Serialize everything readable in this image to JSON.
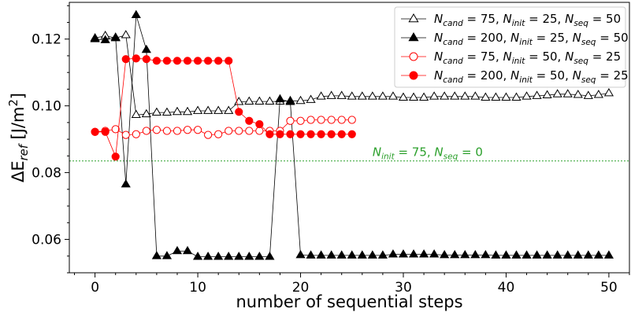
{
  "chart_data": {
    "type": "line",
    "xlabel": "number of sequential steps",
    "ylabel": "ΔE_ref [J/m²]",
    "ylabel_parts": {
      "prefix": "ΔE",
      "sub": "ref",
      "unit_open": " [J/m",
      "unit_sup": "2",
      "unit_close": "]"
    },
    "xlim": [
      -2.5,
      52.0
    ],
    "ylim": [
      0.05,
      0.131
    ],
    "xticks": [
      0,
      10,
      20,
      30,
      40,
      50
    ],
    "xtick_labels": [
      "0",
      "10",
      "20",
      "30",
      "40",
      "50"
    ],
    "yticks": [
      0.06,
      0.08,
      0.1,
      0.12
    ],
    "ytick_labels": [
      "0.06",
      "0.08",
      "0.10",
      "0.12"
    ],
    "grid": false,
    "legend_position": "top-right",
    "reference_line": {
      "y": 0.0835,
      "color": "#2ca02c",
      "label_parts": [
        {
          "t": "N",
          "s": "i"
        },
        {
          "t": "init",
          "s": "sub"
        },
        {
          "t": " = 75, ",
          "s": "n"
        },
        {
          "t": "N",
          "s": "i"
        },
        {
          "t": "seq",
          "s": "sub"
        },
        {
          "t": " = 0",
          "s": "n"
        }
      ],
      "label_x": 27.0
    },
    "series": [
      {
        "label_parts": [
          {
            "t": "N",
            "s": "i"
          },
          {
            "t": "cand",
            "s": "sub"
          },
          {
            "t": " = 75, ",
            "s": "n"
          },
          {
            "t": "N",
            "s": "i"
          },
          {
            "t": "init",
            "s": "sub"
          },
          {
            "t": " = 25, ",
            "s": "n"
          },
          {
            "t": "N",
            "s": "i"
          },
          {
            "t": "seq",
            "s": "sub"
          },
          {
            "t": " = 50",
            "s": "n"
          }
        ],
        "color": "#000000",
        "marker": "triangle",
        "filled": false,
        "x": [
          0,
          1,
          2,
          3,
          4,
          5,
          6,
          7,
          8,
          9,
          10,
          11,
          12,
          13,
          14,
          15,
          16,
          17,
          18,
          19,
          20,
          21,
          22,
          23,
          24,
          25,
          26,
          27,
          28,
          29,
          30,
          31,
          32,
          33,
          34,
          35,
          36,
          37,
          38,
          39,
          40,
          41,
          42,
          43,
          44,
          45,
          46,
          47,
          48,
          49,
          50
        ],
        "values": [
          0.1203,
          0.121,
          0.1203,
          0.1212,
          0.0973,
          0.0975,
          0.098,
          0.098,
          0.0982,
          0.0982,
          0.0985,
          0.0985,
          0.0985,
          0.0985,
          0.1012,
          0.1013,
          0.1013,
          0.1013,
          0.1013,
          0.1015,
          0.1015,
          0.1018,
          0.1028,
          0.103,
          0.103,
          0.1028,
          0.1028,
          0.1028,
          0.1028,
          0.1028,
          0.1025,
          0.1025,
          0.1025,
          0.1028,
          0.1028,
          0.1028,
          0.1028,
          0.1028,
          0.1025,
          0.1025,
          0.1025,
          0.1025,
          0.1028,
          0.103,
          0.1032,
          0.1035,
          0.1035,
          0.1033,
          0.103,
          0.1033,
          0.1038
        ]
      },
      {
        "label_parts": [
          {
            "t": "N",
            "s": "i"
          },
          {
            "t": "cand",
            "s": "sub"
          },
          {
            "t": " = 200, ",
            "s": "n"
          },
          {
            "t": "N",
            "s": "i"
          },
          {
            "t": "init",
            "s": "sub"
          },
          {
            "t": " = 25, ",
            "s": "n"
          },
          {
            "t": "N",
            "s": "i"
          },
          {
            "t": "seq",
            "s": "sub"
          },
          {
            "t": " = 50",
            "s": "n"
          }
        ],
        "color": "#000000",
        "marker": "triangle",
        "filled": true,
        "x": [
          0,
          1,
          2,
          3,
          4,
          5,
          6,
          7,
          8,
          9,
          10,
          11,
          12,
          13,
          14,
          15,
          16,
          17,
          18,
          19,
          20,
          21,
          22,
          23,
          24,
          25,
          26,
          27,
          28,
          29,
          30,
          31,
          32,
          33,
          34,
          35,
          36,
          37,
          38,
          39,
          40,
          41,
          42,
          43,
          44,
          45,
          46,
          47,
          48,
          49,
          50
        ],
        "values": [
          0.12,
          0.1197,
          0.1205,
          0.0765,
          0.1272,
          0.1168,
          0.055,
          0.055,
          0.0565,
          0.0565,
          0.0548,
          0.0548,
          0.0548,
          0.0548,
          0.0548,
          0.0548,
          0.0548,
          0.0548,
          0.102,
          0.1012,
          0.0553,
          0.0552,
          0.0552,
          0.0552,
          0.0552,
          0.0552,
          0.0552,
          0.0552,
          0.0552,
          0.0555,
          0.0555,
          0.0555,
          0.0555,
          0.0555,
          0.0553,
          0.0553,
          0.0553,
          0.0553,
          0.0553,
          0.0552,
          0.0552,
          0.0552,
          0.0552,
          0.0552,
          0.0552,
          0.0552,
          0.0552,
          0.0552,
          0.0552,
          0.0552,
          0.0552
        ]
      },
      {
        "label_parts": [
          {
            "t": "N",
            "s": "i"
          },
          {
            "t": "cand",
            "s": "sub"
          },
          {
            "t": " = 75, ",
            "s": "n"
          },
          {
            "t": "N",
            "s": "i"
          },
          {
            "t": "init",
            "s": "sub"
          },
          {
            "t": " = 50, ",
            "s": "n"
          },
          {
            "t": "N",
            "s": "i"
          },
          {
            "t": "seq",
            "s": "sub"
          },
          {
            "t": " = 25",
            "s": "n"
          }
        ],
        "color": "#ff0000",
        "marker": "circle",
        "filled": false,
        "x": [
          0,
          1,
          2,
          3,
          4,
          5,
          6,
          7,
          8,
          9,
          10,
          11,
          12,
          13,
          14,
          15,
          16,
          17,
          18,
          19,
          20,
          21,
          22,
          23,
          24,
          25
        ],
        "values": [
          0.0922,
          0.0925,
          0.093,
          0.0913,
          0.0915,
          0.0925,
          0.0928,
          0.0925,
          0.0925,
          0.0928,
          0.0928,
          0.0913,
          0.0915,
          0.0925,
          0.0925,
          0.0925,
          0.0925,
          0.0925,
          0.0925,
          0.0955,
          0.0955,
          0.0958,
          0.0958,
          0.0958,
          0.0958,
          0.0958
        ]
      },
      {
        "label_parts": [
          {
            "t": "N",
            "s": "i"
          },
          {
            "t": "cand",
            "s": "sub"
          },
          {
            "t": " = 200, ",
            "s": "n"
          },
          {
            "t": "N",
            "s": "i"
          },
          {
            "t": "init",
            "s": "sub"
          },
          {
            "t": " = 50, ",
            "s": "n"
          },
          {
            "t": "N",
            "s": "i"
          },
          {
            "t": "seq",
            "s": "sub"
          },
          {
            "t": " = 25",
            "s": "n"
          }
        ],
        "color": "#ff0000",
        "marker": "circle",
        "filled": true,
        "x": [
          0,
          1,
          2,
          3,
          4,
          5,
          6,
          7,
          8,
          9,
          10,
          11,
          12,
          13,
          14,
          15,
          16,
          17,
          18,
          19,
          20,
          21,
          22,
          23,
          24,
          25
        ],
        "values": [
          0.0922,
          0.0922,
          0.0848,
          0.114,
          0.1142,
          0.114,
          0.1135,
          0.1135,
          0.1135,
          0.1135,
          0.1135,
          0.1135,
          0.1135,
          0.1135,
          0.0982,
          0.0955,
          0.0945,
          0.0915,
          0.0915,
          0.0915,
          0.0915,
          0.0915,
          0.0915,
          0.0915,
          0.0915,
          0.0915
        ]
      }
    ]
  }
}
